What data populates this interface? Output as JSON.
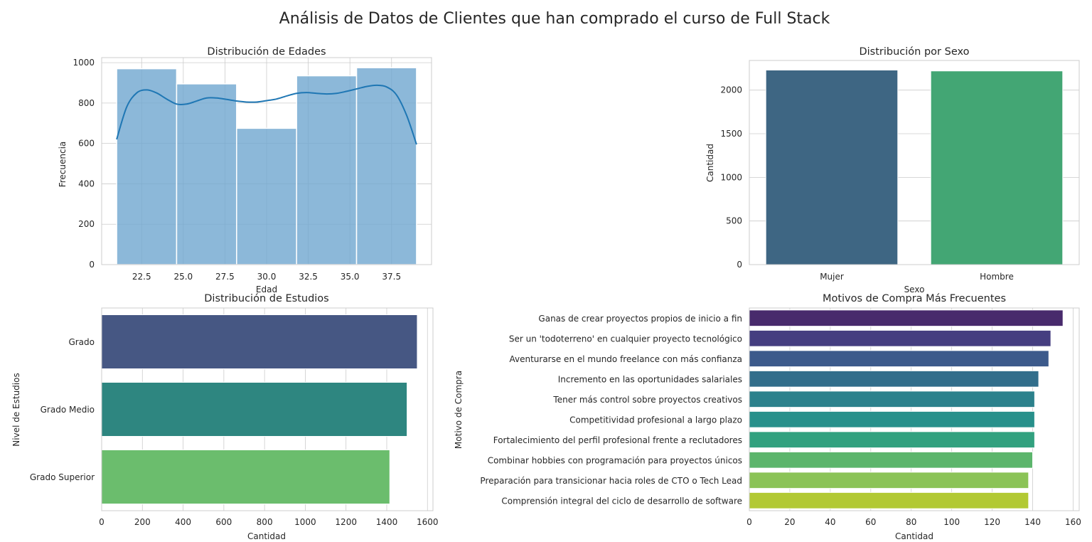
{
  "figure": {
    "title": "Análisis de Datos de Clientes que han comprado el curso de Full Stack"
  },
  "chart_data": [
    {
      "type": "histogram",
      "title": "Distribución de Edades",
      "xlabel": "Edad",
      "ylabel": "Frecuencia",
      "bins": [
        {
          "start": 21.0,
          "end": 24.6,
          "value": 970
        },
        {
          "start": 24.6,
          "end": 28.2,
          "value": 895
        },
        {
          "start": 28.2,
          "end": 31.8,
          "value": 675
        },
        {
          "start": 31.8,
          "end": 35.4,
          "value": 935
        },
        {
          "start": 35.4,
          "end": 39.0,
          "value": 975
        }
      ],
      "kde": {
        "x": [
          21.0,
          21.6,
          22.2,
          22.8,
          23.4,
          24.0,
          24.6,
          25.2,
          25.8,
          26.4,
          27.0,
          27.6,
          28.2,
          28.8,
          29.4,
          30.0,
          30.6,
          31.2,
          31.8,
          32.4,
          33.0,
          33.6,
          34.2,
          34.8,
          35.4,
          36.0,
          36.6,
          37.2,
          37.8,
          38.4,
          39.0
        ],
        "y": [
          620,
          780,
          850,
          865,
          850,
          820,
          795,
          795,
          810,
          825,
          825,
          818,
          810,
          805,
          805,
          812,
          820,
          835,
          848,
          852,
          848,
          845,
          848,
          858,
          870,
          882,
          888,
          880,
          840,
          740,
          595
        ]
      },
      "color": "#6fa6cf",
      "kde_color": "#1f77b4",
      "xticks": [
        22.5,
        25.0,
        27.5,
        30.0,
        32.5,
        35.0,
        37.5
      ],
      "xtick_labels": [
        "22.5",
        "25.0",
        "27.5",
        "30.0",
        "32.5",
        "35.0",
        "37.5"
      ],
      "yticks": [
        0,
        200,
        400,
        600,
        800,
        1000
      ],
      "xlim": [
        20.1,
        39.9
      ],
      "ylim": [
        0,
        1025
      ]
    },
    {
      "type": "bar",
      "title": "Distribución por Sexo",
      "xlabel": "Sexo",
      "ylabel": "Cantidad",
      "categories": [
        "Mujer",
        "Hombre"
      ],
      "values": [
        2230,
        2220
      ],
      "colors": [
        "#3e6683",
        "#43a674"
      ],
      "yticks": [
        0,
        500,
        1000,
        1500,
        2000
      ],
      "ylim": [
        0,
        2340
      ]
    },
    {
      "type": "barh",
      "title": "Distribución de Estudios",
      "xlabel": "Cantidad",
      "ylabel": "Nivel de Estudios",
      "categories": [
        "Grado",
        "Grado Medio",
        "Grado Superior"
      ],
      "values": [
        1550,
        1500,
        1415
      ],
      "colors": [
        "#465783",
        "#2e8680",
        "#6bbd6d"
      ],
      "xticks": [
        0,
        200,
        400,
        600,
        800,
        1000,
        1200,
        1400,
        1600
      ],
      "xlim": [
        0,
        1627
      ]
    },
    {
      "type": "barh",
      "title": "Motivos de Compra Más Frecuentes",
      "xlabel": "Cantidad",
      "ylabel": "Motivo de Compra",
      "categories": [
        "Ganas de crear proyectos propios de inicio a fin",
        "Ser un 'todoterreno' en cualquier proyecto tecnológico",
        "Aventurarse en el mundo freelance con más confianza",
        "Incremento en las oportunidades salariales",
        "Tener más control sobre proyectos creativos",
        "Competitividad profesional a largo plazo",
        "Fortalecimiento del perfil profesional frente a reclutadores",
        "Combinar hobbies con programación para proyectos únicos",
        "Preparación para transicionar hacia roles de CTO o Tech Lead",
        "Comprensión integral del ciclo de desarrollo de software"
      ],
      "values": [
        155,
        149,
        148,
        143,
        141,
        141,
        141,
        140,
        138,
        138
      ],
      "colors": [
        "#482a6c",
        "#453e80",
        "#3c5a8b",
        "#326e8b",
        "#2c818c",
        "#28908b",
        "#32a17f",
        "#5cb56c",
        "#8bc357",
        "#b2c934"
      ],
      "xticks": [
        0,
        20,
        40,
        60,
        80,
        100,
        120,
        140,
        160
      ],
      "xlim": [
        0,
        163
      ]
    }
  ]
}
